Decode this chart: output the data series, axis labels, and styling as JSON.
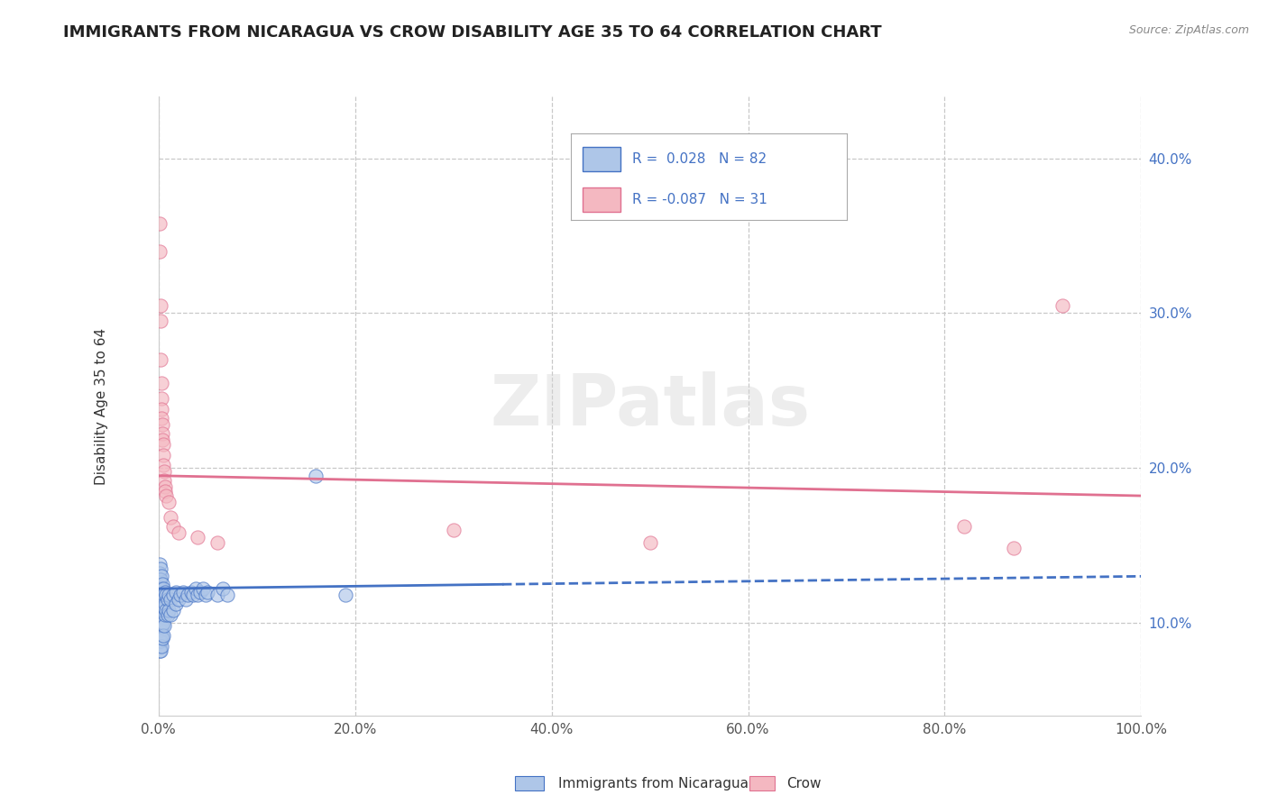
{
  "title": "IMMIGRANTS FROM NICARAGUA VS CROW DISABILITY AGE 35 TO 64 CORRELATION CHART",
  "source": "Source: ZipAtlas.com",
  "ylabel": "Disability Age 35 to 64",
  "xlim": [
    0,
    1.0
  ],
  "ylim": [
    0.04,
    0.44
  ],
  "xtick_labels": [
    "0.0%",
    "20.0%",
    "40.0%",
    "60.0%",
    "80.0%",
    "100.0%"
  ],
  "xtick_positions": [
    0.0,
    0.2,
    0.4,
    0.6,
    0.8,
    1.0
  ],
  "ytick_labels": [
    "10.0%",
    "20.0%",
    "30.0%",
    "40.0%"
  ],
  "ytick_positions": [
    0.1,
    0.2,
    0.3,
    0.4
  ],
  "watermark": "ZIPatlas",
  "blue_scatter": [
    [
      0.001,
      0.138
    ],
    [
      0.001,
      0.132
    ],
    [
      0.001,
      0.128
    ],
    [
      0.001,
      0.122
    ],
    [
      0.001,
      0.118
    ],
    [
      0.001,
      0.115
    ],
    [
      0.001,
      0.112
    ],
    [
      0.001,
      0.108
    ],
    [
      0.001,
      0.105
    ],
    [
      0.001,
      0.102
    ],
    [
      0.001,
      0.098
    ],
    [
      0.001,
      0.095
    ],
    [
      0.001,
      0.092
    ],
    [
      0.001,
      0.088
    ],
    [
      0.001,
      0.085
    ],
    [
      0.001,
      0.082
    ],
    [
      0.002,
      0.135
    ],
    [
      0.002,
      0.128
    ],
    [
      0.002,
      0.122
    ],
    [
      0.002,
      0.118
    ],
    [
      0.002,
      0.115
    ],
    [
      0.002,
      0.11
    ],
    [
      0.002,
      0.105
    ],
    [
      0.002,
      0.1
    ],
    [
      0.002,
      0.095
    ],
    [
      0.002,
      0.088
    ],
    [
      0.002,
      0.082
    ],
    [
      0.003,
      0.13
    ],
    [
      0.003,
      0.122
    ],
    [
      0.003,
      0.118
    ],
    [
      0.003,
      0.112
    ],
    [
      0.003,
      0.108
    ],
    [
      0.003,
      0.098
    ],
    [
      0.003,
      0.092
    ],
    [
      0.003,
      0.085
    ],
    [
      0.004,
      0.125
    ],
    [
      0.004,
      0.118
    ],
    [
      0.004,
      0.112
    ],
    [
      0.004,
      0.105
    ],
    [
      0.004,
      0.098
    ],
    [
      0.004,
      0.09
    ],
    [
      0.005,
      0.122
    ],
    [
      0.005,
      0.115
    ],
    [
      0.005,
      0.108
    ],
    [
      0.005,
      0.1
    ],
    [
      0.005,
      0.092
    ],
    [
      0.006,
      0.118
    ],
    [
      0.006,
      0.11
    ],
    [
      0.006,
      0.098
    ],
    [
      0.007,
      0.12
    ],
    [
      0.007,
      0.112
    ],
    [
      0.007,
      0.105
    ],
    [
      0.008,
      0.118
    ],
    [
      0.008,
      0.108
    ],
    [
      0.009,
      0.115
    ],
    [
      0.009,
      0.105
    ],
    [
      0.01,
      0.118
    ],
    [
      0.01,
      0.108
    ],
    [
      0.012,
      0.115
    ],
    [
      0.012,
      0.105
    ],
    [
      0.015,
      0.118
    ],
    [
      0.015,
      0.108
    ],
    [
      0.018,
      0.12
    ],
    [
      0.018,
      0.112
    ],
    [
      0.02,
      0.115
    ],
    [
      0.022,
      0.118
    ],
    [
      0.025,
      0.12
    ],
    [
      0.028,
      0.115
    ],
    [
      0.03,
      0.118
    ],
    [
      0.033,
      0.12
    ],
    [
      0.035,
      0.118
    ],
    [
      0.038,
      0.122
    ],
    [
      0.04,
      0.118
    ],
    [
      0.042,
      0.12
    ],
    [
      0.045,
      0.122
    ],
    [
      0.048,
      0.118
    ],
    [
      0.05,
      0.12
    ],
    [
      0.06,
      0.118
    ],
    [
      0.065,
      0.122
    ],
    [
      0.07,
      0.118
    ],
    [
      0.16,
      0.195
    ],
    [
      0.19,
      0.118
    ]
  ],
  "pink_scatter": [
    [
      0.001,
      0.358
    ],
    [
      0.001,
      0.34
    ],
    [
      0.002,
      0.305
    ],
    [
      0.002,
      0.295
    ],
    [
      0.002,
      0.27
    ],
    [
      0.003,
      0.255
    ],
    [
      0.003,
      0.245
    ],
    [
      0.003,
      0.238
    ],
    [
      0.003,
      0.232
    ],
    [
      0.004,
      0.228
    ],
    [
      0.004,
      0.222
    ],
    [
      0.004,
      0.218
    ],
    [
      0.005,
      0.215
    ],
    [
      0.005,
      0.208
    ],
    [
      0.005,
      0.202
    ],
    [
      0.006,
      0.198
    ],
    [
      0.006,
      0.192
    ],
    [
      0.007,
      0.188
    ],
    [
      0.007,
      0.185
    ],
    [
      0.008,
      0.182
    ],
    [
      0.01,
      0.178
    ],
    [
      0.012,
      0.168
    ],
    [
      0.015,
      0.162
    ],
    [
      0.02,
      0.158
    ],
    [
      0.04,
      0.155
    ],
    [
      0.06,
      0.152
    ],
    [
      0.3,
      0.16
    ],
    [
      0.5,
      0.152
    ],
    [
      0.82,
      0.162
    ],
    [
      0.87,
      0.148
    ],
    [
      0.92,
      0.305
    ]
  ],
  "blue_line_solid": {
    "x0": 0.0,
    "x1": 0.35,
    "y_intercept": 0.122,
    "slope": 0.008
  },
  "blue_line_dash": {
    "x0": 0.35,
    "x1": 1.0,
    "y_intercept": 0.122,
    "slope": 0.008
  },
  "pink_line": {
    "x0": 0.0,
    "x1": 1.0,
    "y_intercept": 0.195,
    "slope": -0.013
  },
  "blue_color": "#4472c4",
  "blue_scatter_color": "#aec6e8",
  "pink_color": "#e07090",
  "pink_scatter_color": "#f4b8c1",
  "grid_color": "#c8c8c8",
  "background_color": "#ffffff",
  "title_fontsize": 13,
  "axis_label_fontsize": 11,
  "tick_fontsize": 11,
  "legend_r1": "R =  0.028   N = 82",
  "legend_r2": "R = -0.087   N = 31",
  "bottom_label1": "Immigrants from Nicaragua",
  "bottom_label2": "Crow"
}
